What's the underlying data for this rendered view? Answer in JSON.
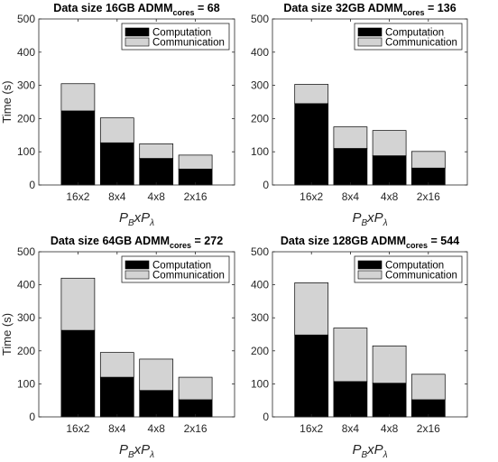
{
  "colors": {
    "computation": "#000000",
    "communication": "#d3d3d3",
    "axis": "#262626"
  },
  "chart_data": [
    {
      "type": "bar",
      "stacked": true,
      "title_main": "Data size 16GB  ADMM",
      "title_sub": "cores",
      "title_tail": " = 68",
      "xlabel_parts": [
        "P",
        "B",
        "xP",
        "λ"
      ],
      "ylabel": "Time (s)",
      "ylim": [
        0,
        500
      ],
      "yticks": [
        0,
        100,
        200,
        300,
        400,
        500
      ],
      "grid": false,
      "legend_position": "top-right",
      "categories": [
        "16x2",
        "8x4",
        "4x8",
        "2x16"
      ],
      "series": [
        {
          "name": "Computation",
          "values": [
            223,
            127,
            80,
            48
          ]
        },
        {
          "name": "Communication",
          "values": [
            82,
            75,
            44,
            42
          ]
        }
      ]
    },
    {
      "type": "bar",
      "stacked": true,
      "title_main": "Data size 32GB  ADMM",
      "title_sub": "cores",
      "title_tail": " = 136",
      "xlabel_parts": [
        "P",
        "B",
        "xP",
        "λ"
      ],
      "ylabel": "",
      "ylim": [
        0,
        500
      ],
      "yticks": [
        0,
        100,
        200,
        300,
        400,
        500
      ],
      "grid": false,
      "legend_position": "top-right",
      "categories": [
        "16x2",
        "8x4",
        "4x8",
        "2x16"
      ],
      "series": [
        {
          "name": "Computation",
          "values": [
            245,
            110,
            88,
            51
          ]
        },
        {
          "name": "Communication",
          "values": [
            58,
            65,
            76,
            50
          ]
        }
      ]
    },
    {
      "type": "bar",
      "stacked": true,
      "title_main": "Data size 64GB  ADMM",
      "title_sub": "cores",
      "title_tail": " = 272",
      "xlabel_parts": [
        "P",
        "B",
        "xP",
        "λ"
      ],
      "ylabel": "Time (s)",
      "ylim": [
        0,
        500
      ],
      "yticks": [
        0,
        100,
        200,
        300,
        400,
        500
      ],
      "grid": false,
      "legend_position": "top-right",
      "categories": [
        "16x2",
        "8x4",
        "4x8",
        "2x16"
      ],
      "series": [
        {
          "name": "Computation",
          "values": [
            262,
            120,
            80,
            52
          ]
        },
        {
          "name": "Communication",
          "values": [
            158,
            75,
            95,
            68
          ]
        }
      ]
    },
    {
      "type": "bar",
      "stacked": true,
      "title_main": "Data size 128GB  ADMM",
      "title_sub": "cores",
      "title_tail": " = 544",
      "xlabel_parts": [
        "P",
        "B",
        "xP",
        "λ"
      ],
      "ylabel": "",
      "ylim": [
        0,
        500
      ],
      "yticks": [
        0,
        100,
        200,
        300,
        400,
        500
      ],
      "grid": false,
      "legend_position": "top-right",
      "categories": [
        "16x2",
        "8x4",
        "4x8",
        "2x16"
      ],
      "series": [
        {
          "name": "Computation",
          "values": [
            248,
            107,
            102,
            52
          ]
        },
        {
          "name": "Communication",
          "values": [
            158,
            162,
            113,
            77
          ]
        }
      ]
    }
  ]
}
